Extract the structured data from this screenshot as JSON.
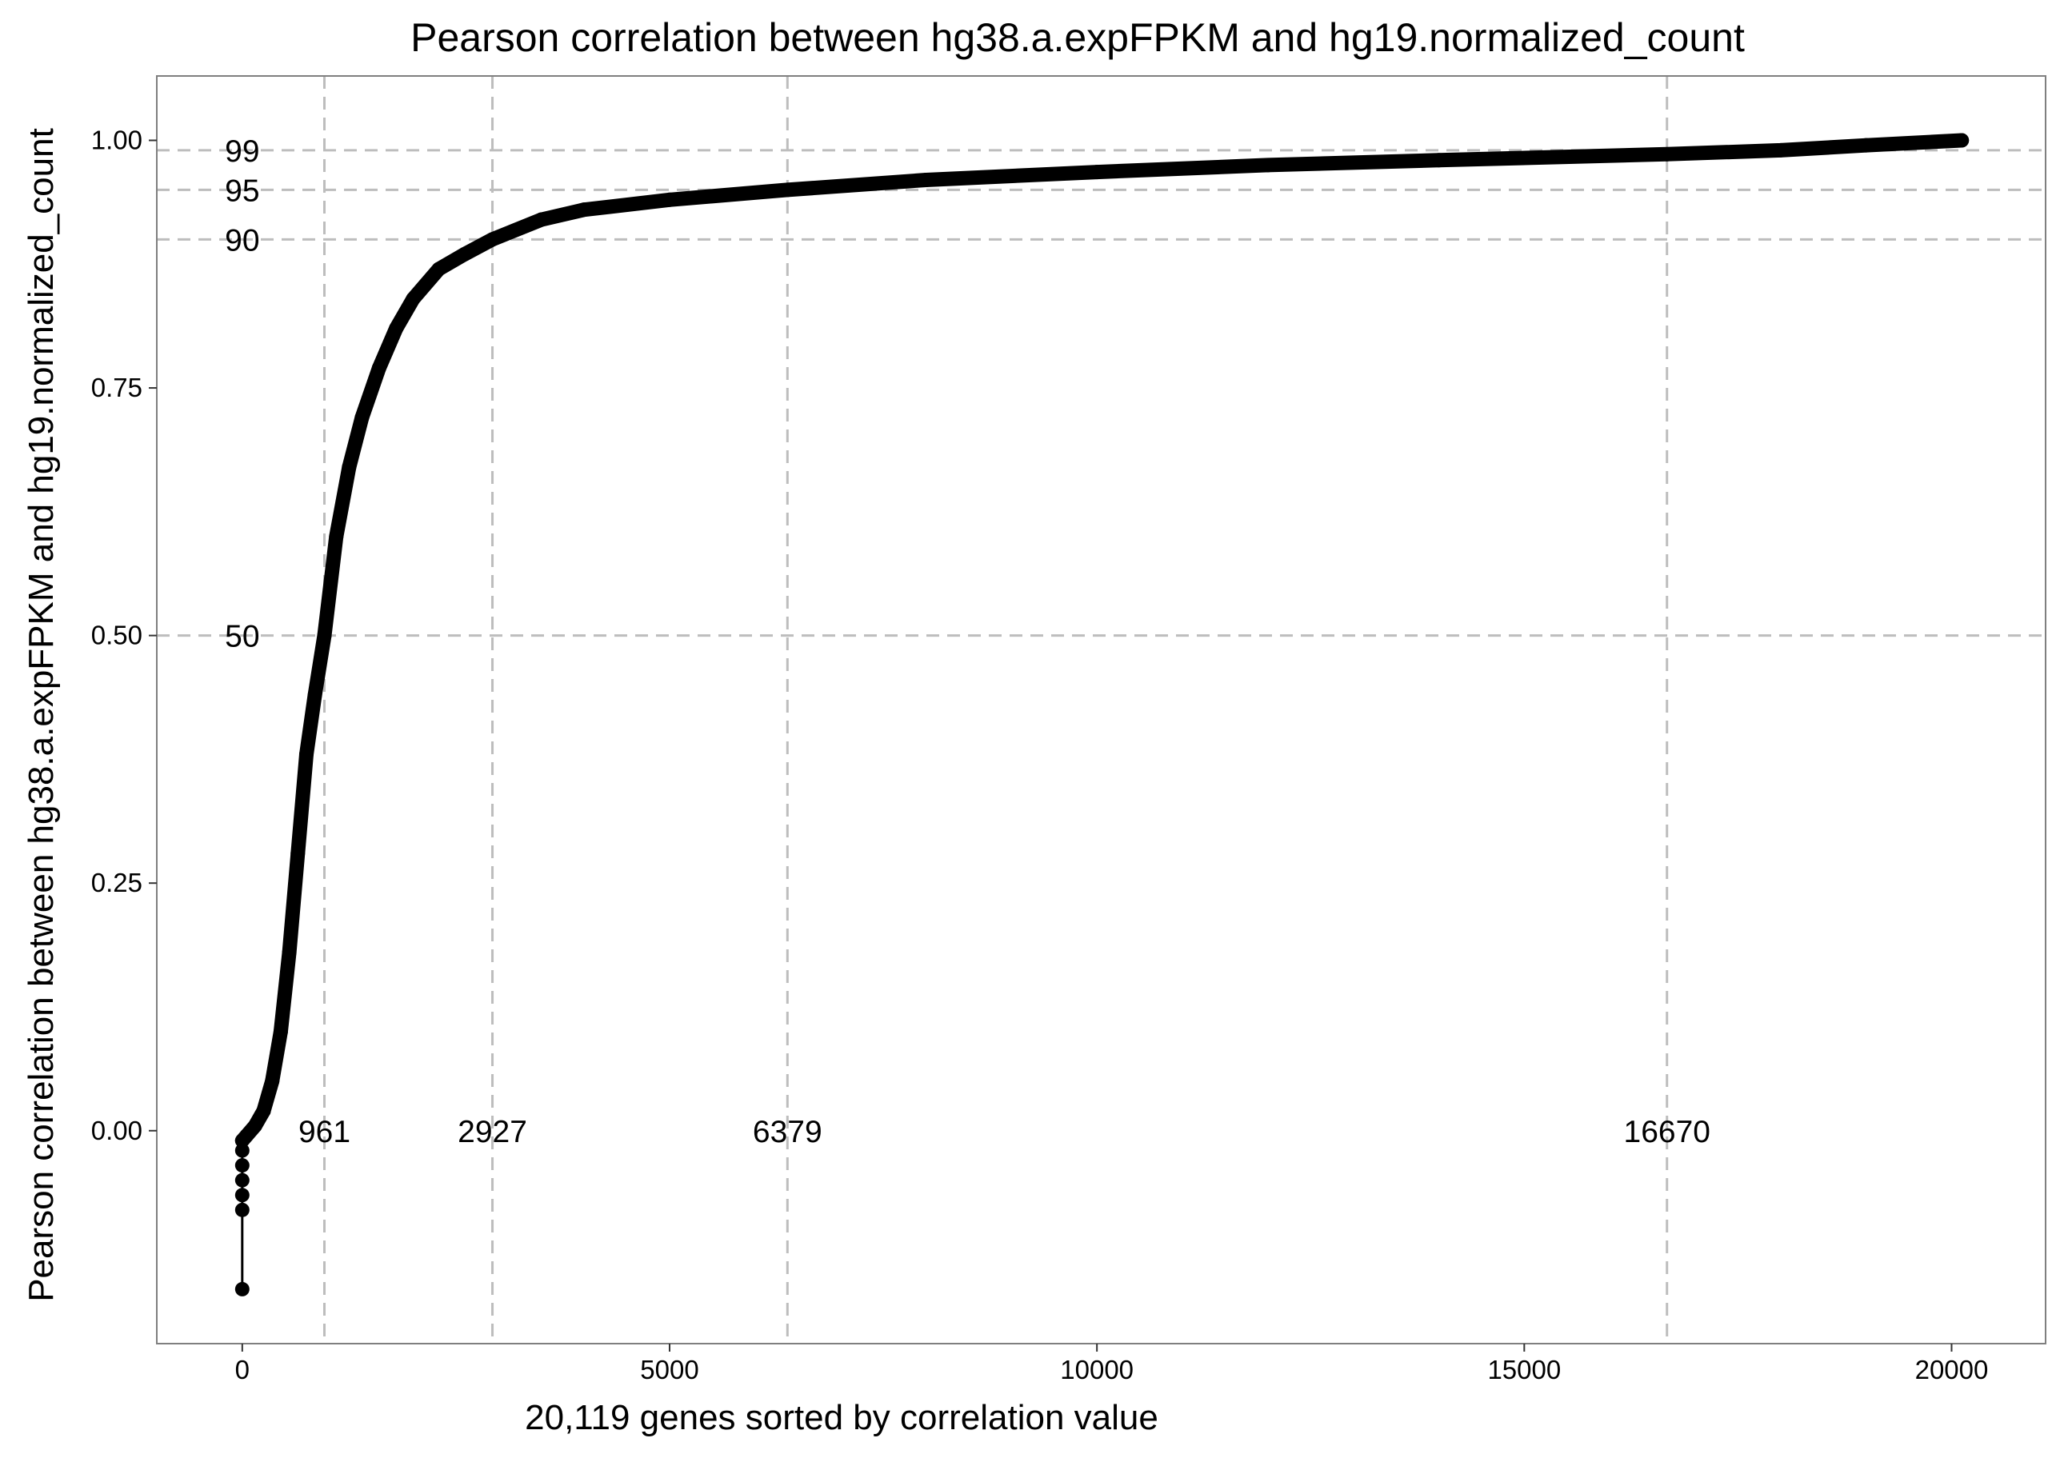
{
  "chart_data": {
    "type": "scatter",
    "title": "Pearson correlation between hg38.a.expFPKM and hg19.normalized_count",
    "xlabel": "20,119 genes sorted by correlation value",
    "ylabel": "Pearson correlation between hg38.a.expFPKM and hg19.normalized_count",
    "xlim": [
      -1000,
      21100
    ],
    "ylim": [
      -0.215,
      1.065
    ],
    "x_ticks": [
      0,
      5000,
      10000,
      15000,
      20000
    ],
    "x_tick_labels": [
      "0",
      "5000",
      "10000",
      "15000",
      "20000"
    ],
    "y_ticks": [
      0,
      0.25,
      0.5,
      0.75,
      1.0
    ],
    "y_tick_labels": [
      "0.00",
      "0.25",
      "0.50",
      "0.75",
      "1.00"
    ],
    "grid": false,
    "theme": "white background with grey panel border",
    "reference_lines": {
      "horizontal": [
        {
          "y": 0.99,
          "label": "99"
        },
        {
          "y": 0.95,
          "label": "95"
        },
        {
          "y": 0.9,
          "label": "90"
        },
        {
          "y": 0.5,
          "label": "50"
        }
      ],
      "vertical": [
        {
          "x": 961,
          "label": "961"
        },
        {
          "x": 2927,
          "label": "2927"
        },
        {
          "x": 6379,
          "label": "6379"
        },
        {
          "x": 16670,
          "label": "16670"
        }
      ],
      "style": "dashed",
      "color": "#bdbdbd"
    },
    "series": [
      {
        "color": "#000000",
        "x": [
          0,
          0,
          0,
          0,
          0,
          0,
          0,
          50,
          150,
          250,
          350,
          450,
          550,
          650,
          750,
          850,
          961,
          1100,
          1250,
          1400,
          1600,
          1800,
          2000,
          2300,
          2600,
          2927,
          3500,
          4000,
          5000,
          6379,
          8000,
          10000,
          12000,
          14000,
          16670,
          18000,
          19000,
          20119
        ],
        "y": [
          -0.16,
          -0.08,
          -0.065,
          -0.05,
          -0.035,
          -0.02,
          -0.01,
          -0.005,
          0.005,
          0.02,
          0.05,
          0.1,
          0.18,
          0.28,
          0.38,
          0.44,
          0.5,
          0.6,
          0.67,
          0.72,
          0.77,
          0.81,
          0.84,
          0.87,
          0.885,
          0.9,
          0.92,
          0.93,
          0.94,
          0.95,
          0.96,
          0.968,
          0.975,
          0.98,
          0.986,
          0.99,
          0.995,
          1.0
        ]
      }
    ]
  }
}
